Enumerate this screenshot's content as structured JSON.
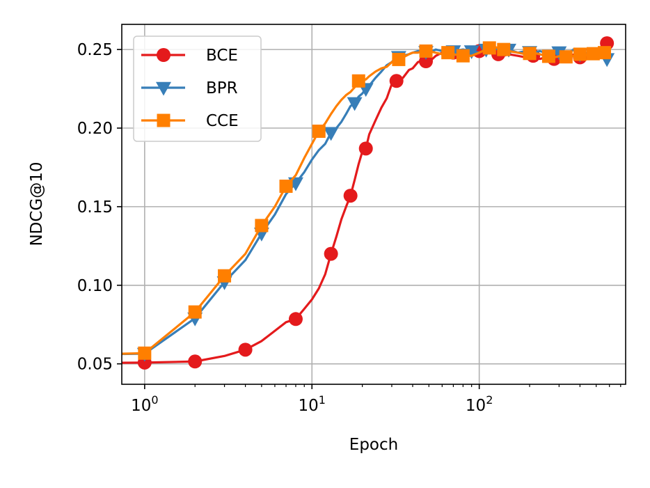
{
  "chart_data": {
    "type": "line",
    "xlabel": "Epoch",
    "ylabel": "NDCG@10",
    "xscale": "log",
    "xlim": [
      0.73,
      750
    ],
    "ylim": [
      0.037,
      0.266
    ],
    "grid": true,
    "legend_position": "upper-left",
    "x_ticks": [
      {
        "value": 1,
        "base": "10",
        "exp": "0"
      },
      {
        "value": 10,
        "base": "10",
        "exp": "1"
      },
      {
        "value": 100,
        "base": "10",
        "exp": "2"
      }
    ],
    "y_ticks": [
      {
        "value": 0.05,
        "label": "0.05"
      },
      {
        "value": 0.1,
        "label": "0.10"
      },
      {
        "value": 0.15,
        "label": "0.15"
      },
      {
        "value": 0.2,
        "label": "0.20"
      },
      {
        "value": 0.25,
        "label": "0.25"
      }
    ],
    "series": [
      {
        "name": "BCE",
        "color": "#e41a1c",
        "marker": "circle",
        "x": [
          0.5,
          1,
          2,
          3,
          4,
          5,
          6,
          7,
          8,
          9,
          10,
          11,
          12,
          13,
          14,
          15,
          16,
          17,
          18,
          19,
          20,
          21,
          22,
          24,
          26,
          28,
          30,
          32,
          35,
          38,
          40,
          43,
          46,
          50,
          55,
          60,
          65,
          70,
          80,
          90,
          100,
          110,
          120,
          130,
          140,
          150,
          170,
          190,
          210,
          230,
          250,
          280,
          310,
          340,
          370,
          400,
          430,
          460,
          490,
          520,
          550,
          580
        ],
        "y": [
          0.0505,
          0.0508,
          0.0515,
          0.055,
          0.059,
          0.0645,
          0.071,
          0.0765,
          0.0785,
          0.085,
          0.091,
          0.098,
          0.107,
          0.12,
          0.131,
          0.142,
          0.15,
          0.157,
          0.167,
          0.177,
          0.185,
          0.187,
          0.196,
          0.205,
          0.213,
          0.219,
          0.228,
          0.23,
          0.232,
          0.237,
          0.238,
          0.242,
          0.243,
          0.242,
          0.246,
          0.248,
          0.247,
          0.248,
          0.249,
          0.247,
          0.249,
          0.248,
          0.25,
          0.247,
          0.246,
          0.247,
          0.246,
          0.245,
          0.246,
          0.244,
          0.245,
          0.244,
          0.246,
          0.245,
          0.247,
          0.245,
          0.247,
          0.246,
          0.247,
          0.248,
          0.25,
          0.254
        ],
        "markers_at": [
          1,
          2,
          4,
          8,
          13,
          17,
          21,
          32,
          48,
          70,
          100,
          130,
          210,
          280,
          400,
          580
        ]
      },
      {
        "name": "BPR",
        "color": "#377eb8",
        "marker": "triangle-down",
        "x": [
          0.5,
          1,
          2,
          3,
          4,
          5,
          6,
          7,
          8,
          9,
          10,
          11,
          12,
          13,
          14,
          15,
          16,
          17,
          18,
          19,
          20,
          21,
          22,
          24,
          26,
          28,
          30,
          32,
          35,
          38,
          40,
          43,
          46,
          50,
          55,
          60,
          65,
          70,
          80,
          90,
          100,
          110,
          120,
          130,
          140,
          150,
          170,
          190,
          210,
          230,
          250,
          280,
          310,
          340,
          370,
          400,
          430,
          460,
          490,
          520,
          550,
          580
        ],
        "y": [
          0.056,
          0.0565,
          0.079,
          0.102,
          0.116,
          0.133,
          0.145,
          0.158,
          0.165,
          0.172,
          0.18,
          0.186,
          0.19,
          0.197,
          0.2,
          0.204,
          0.209,
          0.214,
          0.216,
          0.22,
          0.222,
          0.225,
          0.227,
          0.232,
          0.236,
          0.24,
          0.242,
          0.245,
          0.246,
          0.247,
          0.248,
          0.249,
          0.249,
          0.248,
          0.25,
          0.249,
          0.25,
          0.249,
          0.25,
          0.249,
          0.248,
          0.25,
          0.249,
          0.251,
          0.249,
          0.25,
          0.248,
          0.249,
          0.248,
          0.249,
          0.248,
          0.247,
          0.249,
          0.248,
          0.25,
          0.247,
          0.248,
          0.247,
          0.246,
          0.245,
          0.246,
          0.244
        ],
        "markers_at": [
          1,
          2,
          3,
          5,
          8,
          13,
          18,
          21,
          33,
          48,
          70,
          90,
          110,
          150,
          200,
          300,
          400,
          580
        ]
      },
      {
        "name": "CCE",
        "color": "#ff7f00",
        "marker": "square",
        "x": [
          0.5,
          1,
          2,
          3,
          4,
          5,
          6,
          7,
          8,
          9,
          10,
          11,
          12,
          13,
          14,
          15,
          16,
          17,
          18,
          19,
          20,
          21,
          22,
          24,
          26,
          28,
          30,
          32,
          35,
          38,
          40,
          43,
          46,
          50,
          55,
          60,
          65,
          70,
          80,
          90,
          100,
          110,
          120,
          130,
          140,
          150,
          170,
          190,
          210,
          230,
          250,
          280,
          310,
          340,
          370,
          400,
          430,
          460,
          490,
          520,
          550,
          580
        ],
        "y": [
          0.056,
          0.0568,
          0.083,
          0.106,
          0.12,
          0.138,
          0.15,
          0.163,
          0.17,
          0.181,
          0.19,
          0.198,
          0.203,
          0.209,
          0.214,
          0.218,
          0.221,
          0.223,
          0.226,
          0.23,
          0.23,
          0.231,
          0.233,
          0.236,
          0.238,
          0.239,
          0.242,
          0.243,
          0.245,
          0.247,
          0.248,
          0.248,
          0.249,
          0.249,
          0.248,
          0.247,
          0.248,
          0.247,
          0.246,
          0.246,
          0.248,
          0.25,
          0.252,
          0.251,
          0.25,
          0.249,
          0.248,
          0.247,
          0.248,
          0.247,
          0.246,
          0.245,
          0.246,
          0.245,
          0.246,
          0.247,
          0.246,
          0.248,
          0.247,
          0.249,
          0.248,
          0.248
        ],
        "markers_at": [
          1,
          2,
          3,
          5,
          7,
          11,
          19,
          33,
          48,
          65,
          80,
          115,
          140,
          200,
          260,
          330,
          400,
          480,
          560
        ]
      }
    ]
  }
}
